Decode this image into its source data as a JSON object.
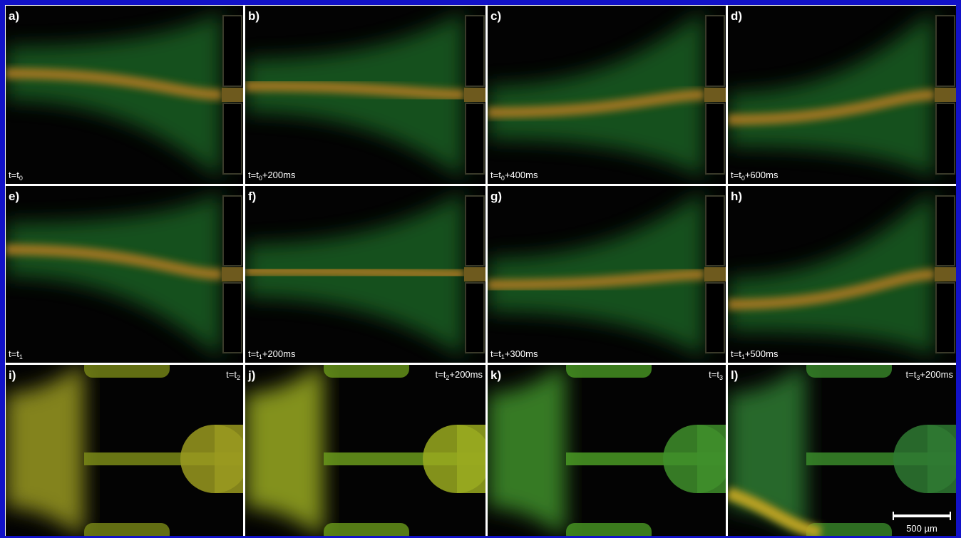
{
  "panels": [
    {
      "label": "a)",
      "time": {
        "base": "t=t",
        "sub": "0"
      }
    },
    {
      "label": "b)",
      "time": {
        "base": "t=t",
        "sub": "0",
        "rest": "+200ms"
      }
    },
    {
      "label": "c)",
      "time": {
        "base": "t=t",
        "sub": "0",
        "rest": "+400ms"
      }
    },
    {
      "label": "d)",
      "time": {
        "base": "t=t",
        "sub": "0",
        "rest": "+600ms"
      }
    },
    {
      "label": "e)",
      "time": {
        "base": "t=t",
        "sub": "1"
      }
    },
    {
      "label": "f)",
      "time": {
        "base": "t=t",
        "sub": "1",
        "rest": "+200ms"
      }
    },
    {
      "label": "g)",
      "time": {
        "base": "t=t",
        "sub": "1",
        "rest": "+300ms"
      }
    },
    {
      "label": "h)",
      "time": {
        "base": "t=t",
        "sub": "1",
        "rest": "+500ms"
      }
    },
    {
      "label": "i)",
      "time": {
        "base": "t=t",
        "sub": "2"
      }
    },
    {
      "label": "j)",
      "time": {
        "base": "t=t",
        "sub": "2",
        "rest": "+200ms"
      }
    },
    {
      "label": "k)",
      "time": {
        "base": "t=t",
        "sub": "3"
      }
    },
    {
      "label": "l)",
      "time": {
        "base": "t=t",
        "sub": "3",
        "rest": "+200ms"
      }
    }
  ],
  "scale_bar": "500 µm"
}
